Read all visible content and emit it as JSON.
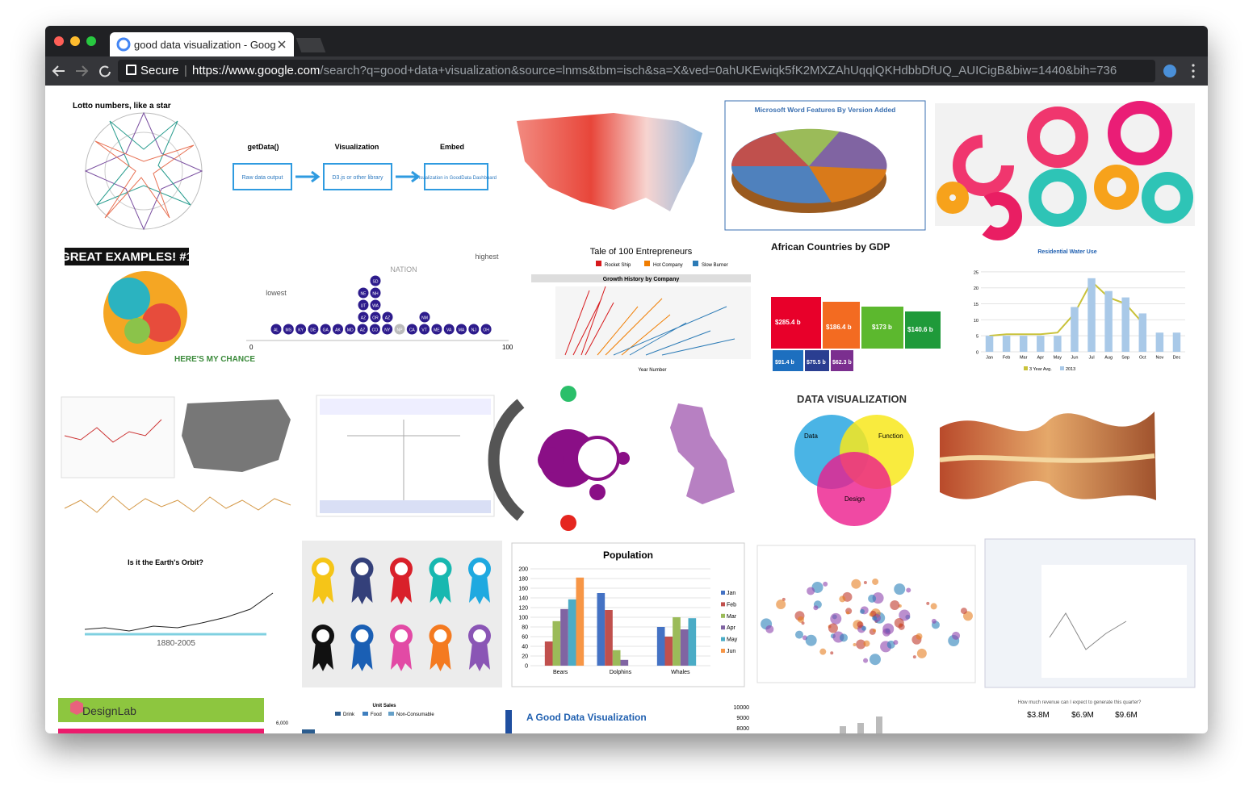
{
  "browser": {
    "tab_title": "good data visualization - Goog",
    "secure": "Secure",
    "url_host": "https://www.google.com",
    "url_rest": "/search?q=good+data+visualization&source=lnms&tbm=isch&sa=X&ved=0ahUKEwiqk5fK2MXZAhUqqlQKHdbbDfUQ_AUICigB&biw=1440&bih=736"
  },
  "thumbnails": {
    "lotto": {
      "title": "Lotto numbers, like a star"
    },
    "pipeline": {
      "steps": [
        "getData()",
        "Visualization",
        "Embed"
      ],
      "boxes": [
        "Raw data output",
        "D3.js or other library",
        "Visualization in GoodData Dashboard"
      ]
    },
    "word_pie": {
      "title": "Microsoft Word Features By Version Added"
    },
    "great_examples": {
      "title": "GREAT EXAMPLES! #1",
      "footer": "HERE'S MY CHANCE"
    },
    "nation": {
      "labels": [
        "NATION",
        "highest",
        "lowest"
      ],
      "axis_start": "0",
      "axis_end": "100",
      "base_row": [
        "AL",
        "MS",
        "KY",
        "DE",
        "GA",
        "AK",
        "MD",
        "AZ",
        "CO",
        "NY",
        "NP",
        "CA",
        "VT",
        "ME",
        "VA",
        "MA",
        "NJ",
        "OH"
      ],
      "stacked": [
        "SD",
        "NE",
        "NH",
        "UT",
        "WA",
        "AZ",
        "OR",
        "AZ",
        "NM"
      ]
    },
    "entrepreneurs": {
      "title": "Tale of 100 Entrepreneurs",
      "subtitle": "Growth History by Company",
      "legend": [
        "Rocket Ship",
        "Hot Company",
        "Slow Burner"
      ],
      "x_label": "Year Number"
    },
    "african_gdp": {
      "title": "African Countries by GDP",
      "blocks": [
        "$285.4 b",
        "$186.4 b",
        "$173 b",
        "$140.6 b",
        "$91.4 b",
        "$75.5 b",
        "$62.3 b"
      ]
    },
    "water_use": {
      "title": "Residential Water Use",
      "categories": [
        "Jan",
        "Feb",
        "Mar",
        "Apr",
        "May",
        "Jun",
        "Jul",
        "Aug",
        "Sep",
        "Oct",
        "Nov",
        "Dec"
      ],
      "series": [
        {
          "name": "3 Year Avg.",
          "color": "#c9c23a",
          "values": [
            5,
            5.5,
            5.5,
            5.5,
            6,
            12,
            22,
            17,
            15,
            9,
            null,
            null
          ]
        },
        {
          "name": "2013",
          "color": "#a9c9e8",
          "values": [
            5,
            5,
            5,
            5,
            5,
            14,
            23,
            19,
            17,
            12,
            6,
            6
          ]
        }
      ],
      "ylim": [
        0,
        28
      ],
      "yticks": [
        0,
        5,
        10,
        15,
        20,
        25
      ]
    },
    "venn": {
      "title": "DATA VISUALIZATION",
      "labels": [
        "Data",
        "Function",
        "Design"
      ]
    },
    "earth": {
      "title": "Is it the Earth's Orbit?",
      "label": "1880-2005"
    },
    "population": {
      "title": "Population",
      "categories": [
        "Bears",
        "Dolphins",
        "Whales"
      ],
      "series": [
        {
          "name": "Jan",
          "color": "#4472c4",
          "values": [
            0,
            150,
            80
          ]
        },
        {
          "name": "Feb",
          "color": "#c0504d",
          "values": [
            50,
            115,
            60
          ]
        },
        {
          "name": "Mar",
          "color": "#9bbb59",
          "values": [
            92,
            32,
            100
          ]
        },
        {
          "name": "Apr",
          "color": "#8064a2",
          "values": [
            117,
            12,
            75
          ]
        },
        {
          "name": "May",
          "color": "#4bacc6",
          "values": [
            137,
            0,
            98
          ]
        },
        {
          "name": "Jun",
          "color": "#f79646",
          "values": [
            182,
            0,
            0
          ]
        }
      ],
      "ylim": [
        0,
        200
      ],
      "yticks": [
        0,
        20,
        40,
        60,
        80,
        100,
        120,
        140,
        160,
        180,
        200
      ]
    },
    "designlab": {
      "title": "DesignLab"
    },
    "unit_sales": {
      "title": "Unit Sales",
      "legend": [
        "Drink",
        "Food",
        "Non-Consumable"
      ],
      "tick": "6,000"
    },
    "good_viz": {
      "title": "A Good Data Visualization",
      "ticks": [
        "10000",
        "9000",
        "8000"
      ]
    },
    "revenue": {
      "question": "How much revenue can I expect to generate this quarter?",
      "values": [
        "$3.8M",
        "$6.9M",
        "$9.6M"
      ]
    }
  }
}
